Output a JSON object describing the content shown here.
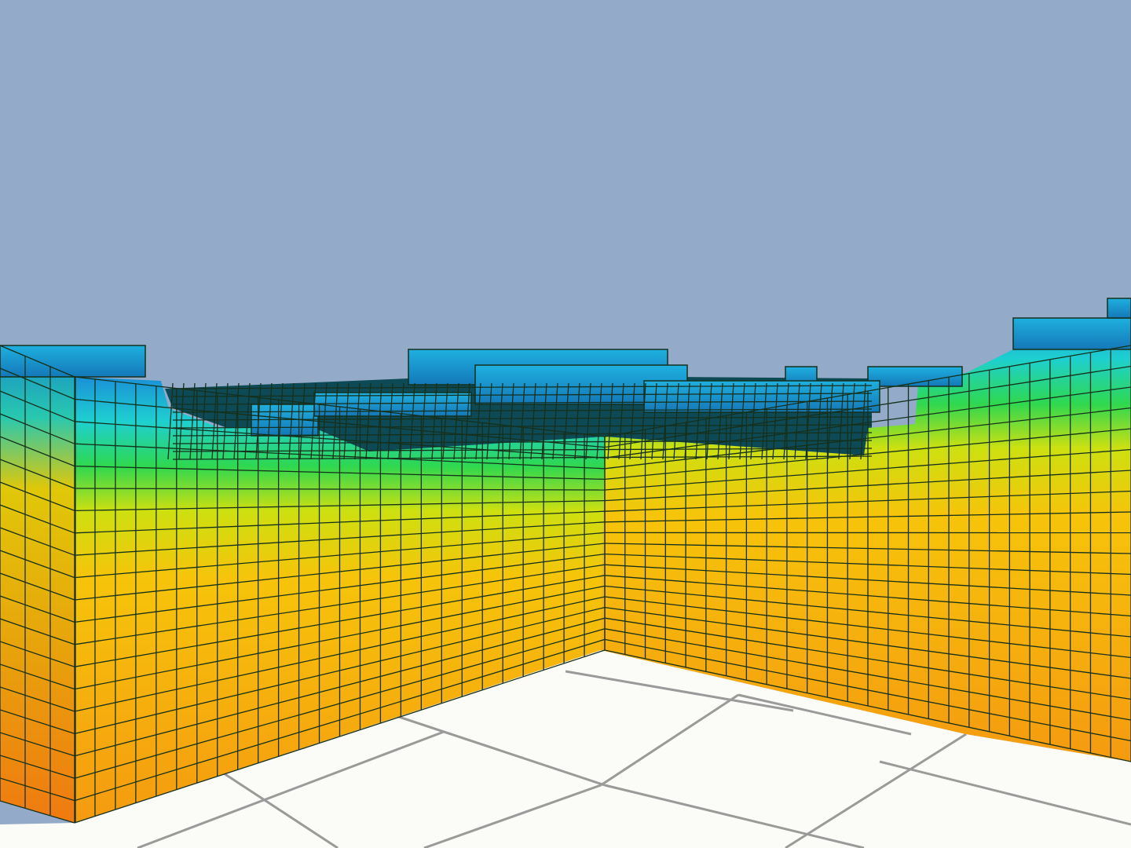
{
  "scene": {
    "kind": "3D voxel terrain cutaway",
    "colors": {
      "sky": "#93aac8",
      "floor": "#fbfbf7",
      "floor_lines": "#9a9a9a",
      "cell_outline": "#15301c",
      "top_surface": "#0e4a55",
      "gradient_deep": "#f59a10",
      "gradient_mid": "#f6c40a",
      "gradient_upper": "#cde010",
      "gradient_green": "#2ed850",
      "gradient_cyan": "#1ed0d0",
      "gradient_blue": "#1a90d8"
    }
  }
}
